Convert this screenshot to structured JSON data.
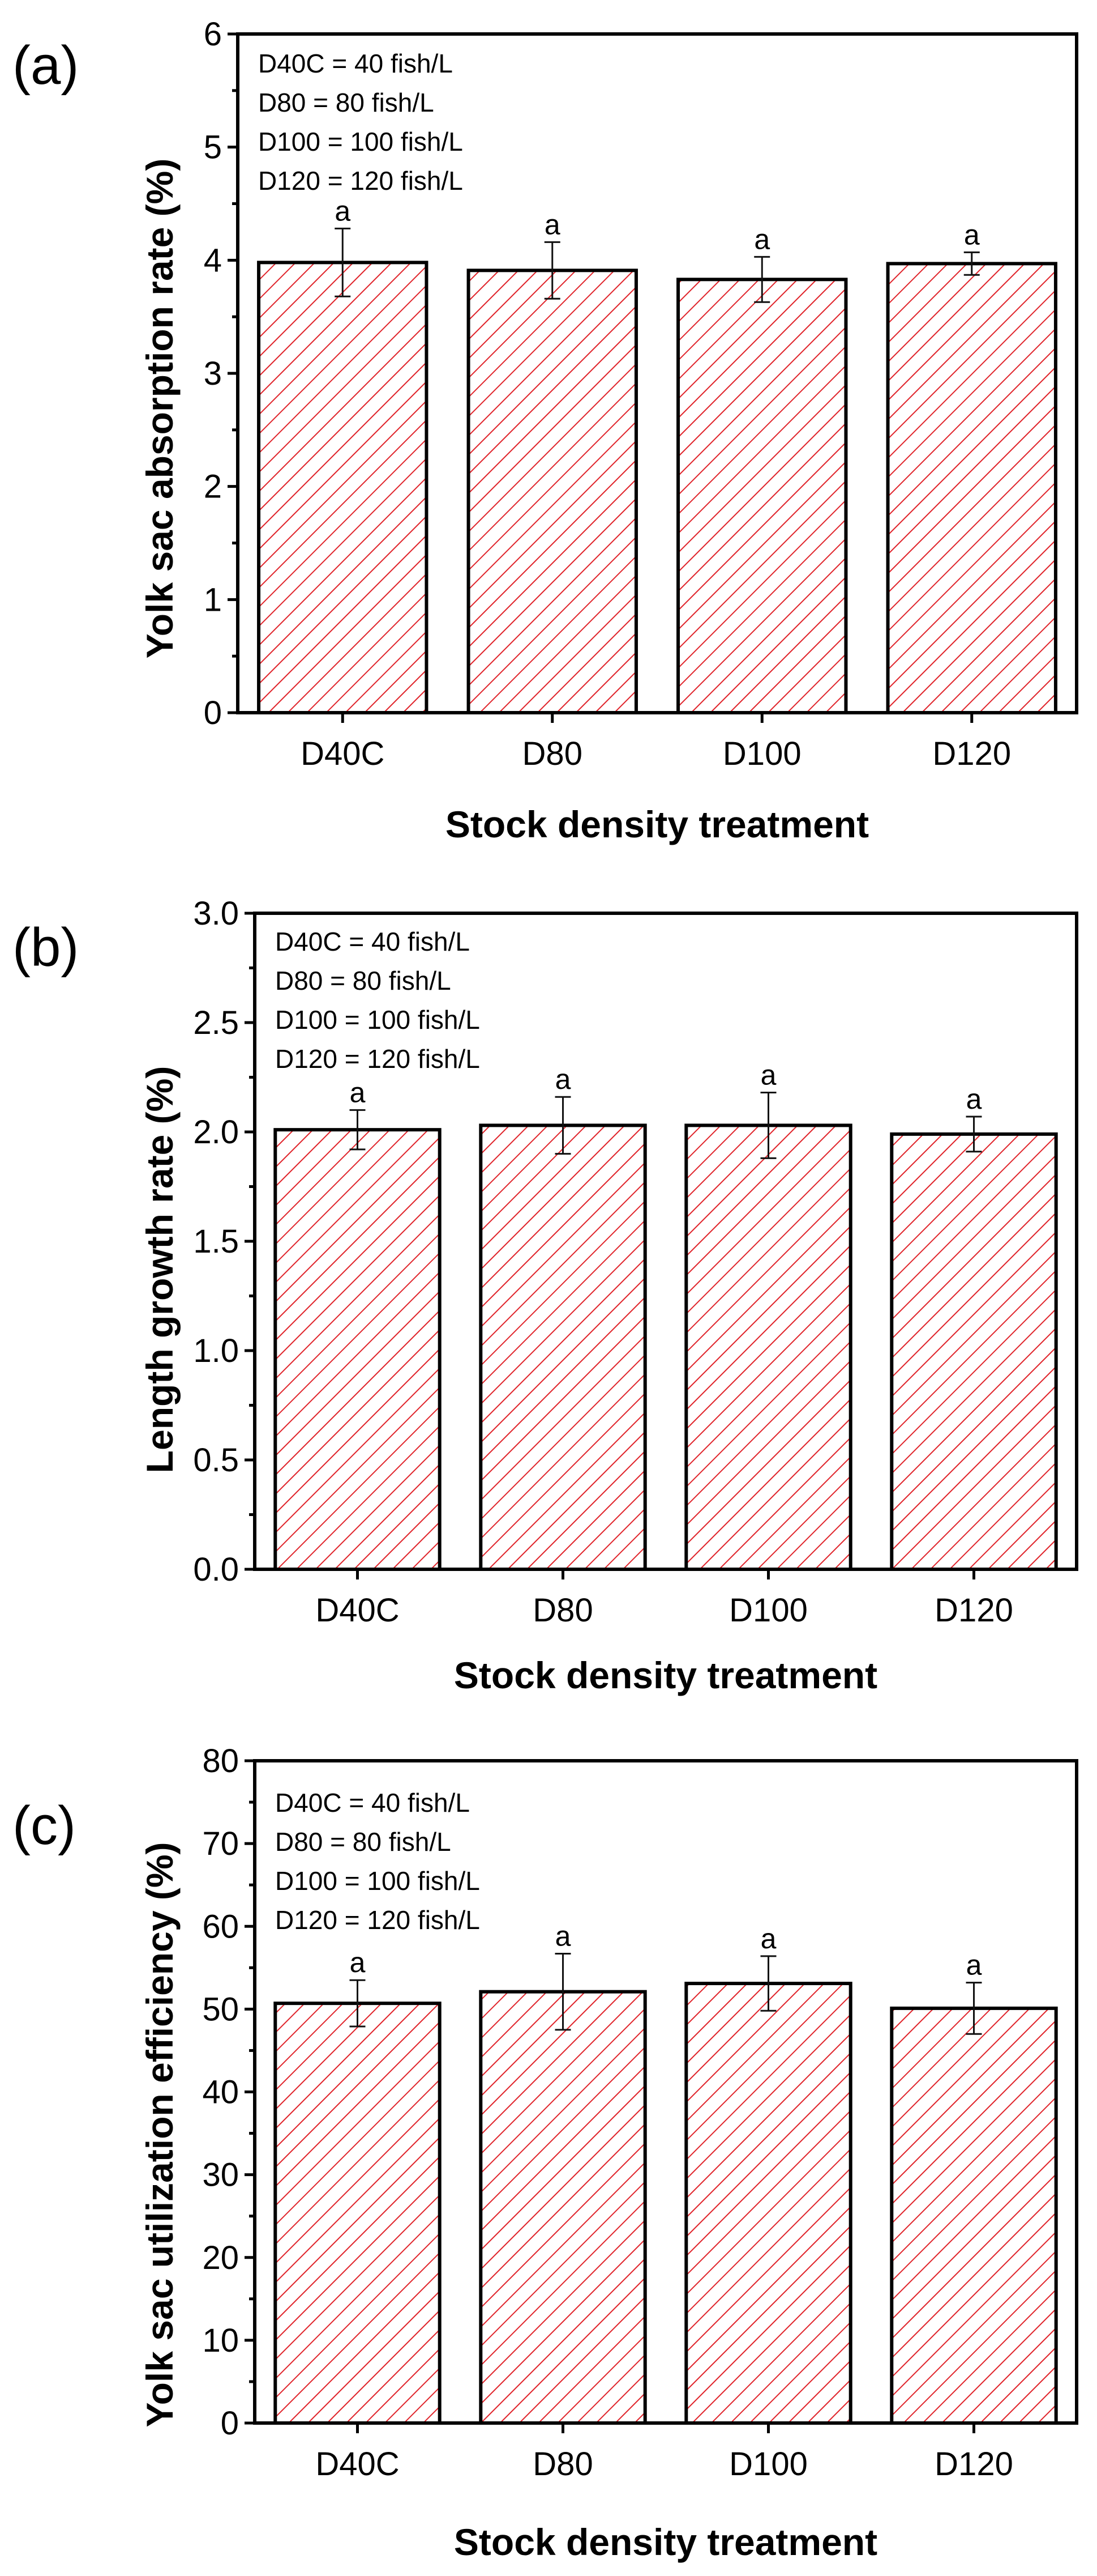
{
  "chart_data": [
    {
      "panel": "(a)",
      "type": "bar",
      "title": "",
      "xlabel": "Stock density treatment",
      "ylabel": "Yolk sac absorption rate (%)",
      "categories": [
        "D40C",
        "D80",
        "D100",
        "D120"
      ],
      "values": [
        3.98,
        3.91,
        3.83,
        3.97
      ],
      "errors": [
        0.3,
        0.25,
        0.2,
        0.1
      ],
      "significance": [
        "a",
        "a",
        "a",
        "a"
      ],
      "ylim": [
        0,
        6
      ],
      "yticks": [
        0,
        1,
        2,
        3,
        4,
        5,
        6
      ],
      "ytick_labels": [
        "0",
        "1",
        "2",
        "3",
        "4",
        "5",
        "6"
      ],
      "legend": [
        "D40C = 40 fish/L",
        "D80 = 80 fish/L",
        "D100 = 100 fish/L",
        "D120 = 120 fish/L"
      ],
      "legend_position": "top-left"
    },
    {
      "panel": "(b)",
      "type": "bar",
      "title": "",
      "xlabel": "Stock density treatment",
      "ylabel": "Length growth rate (%)",
      "categories": [
        "D40C",
        "D80",
        "D100",
        "D120"
      ],
      "values": [
        2.01,
        2.03,
        2.03,
        1.99
      ],
      "errors": [
        0.09,
        0.13,
        0.15,
        0.08
      ],
      "significance": [
        "a",
        "a",
        "a",
        "a"
      ],
      "ylim": [
        0,
        3
      ],
      "yticks": [
        0,
        0.5,
        1,
        1.5,
        2,
        2.5,
        3
      ],
      "ytick_labels": [
        "0.0",
        "0.5",
        "1.0",
        "1.5",
        "2.0",
        "2.5",
        "3.0"
      ],
      "legend": [
        "D40C = 40 fish/L",
        "D80 = 80 fish/L",
        "D100 = 100 fish/L",
        "D120 = 120 fish/L"
      ],
      "legend_position": "top-left"
    },
    {
      "panel": "(c)",
      "type": "bar",
      "title": "",
      "xlabel": "Stock density treatment",
      "ylabel": "Yolk sac utilization efficiency (%)",
      "categories": [
        "D40C",
        "D80",
        "D100",
        "D120"
      ],
      "values": [
        50.7,
        52.1,
        53.1,
        50.1
      ],
      "errors": [
        2.8,
        4.6,
        3.3,
        3.1
      ],
      "significance": [
        "a",
        "a",
        "a",
        "a"
      ],
      "ylim": [
        0,
        80
      ],
      "yticks": [
        0,
        10,
        20,
        30,
        40,
        50,
        60,
        70,
        80
      ],
      "ytick_labels": [
        "0",
        "10",
        "20",
        "30",
        "40",
        "50",
        "60",
        "70",
        "80"
      ],
      "legend": [
        "D40C = 40 fish/L",
        "D80 = 80 fish/L",
        "D100 = 100 fish/L",
        "D120 = 120 fish/L"
      ],
      "legend_position": "top-left"
    }
  ],
  "colors": {
    "hatch": "#e0242b",
    "bar_fill": "#ffffff",
    "axis": "#000000"
  }
}
